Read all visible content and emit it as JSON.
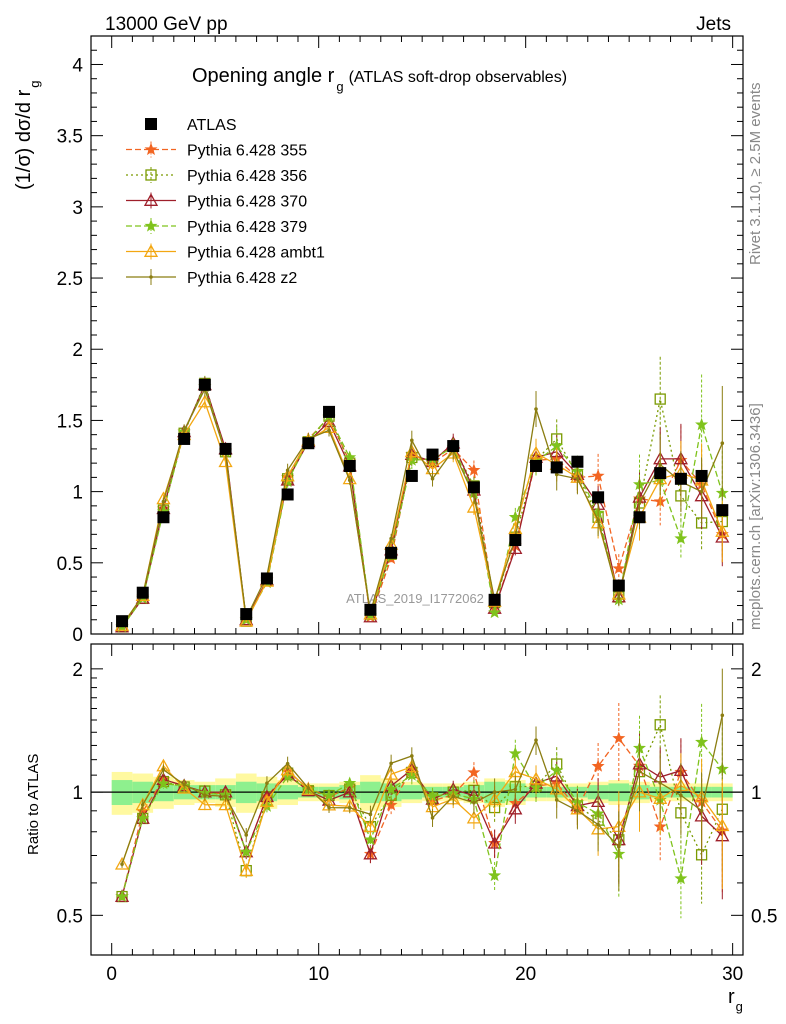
{
  "header": {
    "energy": "13000 GeV pp",
    "category": "Jets"
  },
  "side": {
    "rivet": "Rivet 3.1.10, ≥ 2.5M events",
    "source": "mcplots.cern.ch [arXiv:1306.3436]"
  },
  "chart_data": {
    "type": "line",
    "title_main": "Opening angle r",
    "title_sub": "g",
    "title_extra": "(ATLAS soft-drop observables)",
    "ylabel_main": "(1/σ) dσ/d r",
    "ylabel_sub": "g",
    "ratio_ylabel": "Ratio to ATLAS",
    "xlabel": "r",
    "xlabel_sub": "g",
    "watermark": "ATLAS_2019_I1772062",
    "xlim": [
      -1,
      30.5
    ],
    "ylim": [
      0,
      4.2
    ],
    "ratio_ylim": [
      0.4,
      2.3
    ],
    "x_ticks": [
      "0",
      "10",
      "20",
      "30"
    ],
    "y_ticks": [
      "0",
      "0.5",
      "1",
      "1.5",
      "2",
      "2.5",
      "3",
      "3.5",
      "4"
    ],
    "ratio_ticks": [
      "0.5",
      "1",
      "2"
    ],
    "x": [
      0.5,
      1.5,
      2.5,
      3.5,
      4.5,
      5.5,
      6.5,
      7.5,
      8.5,
      9.5,
      10.5,
      11.5,
      12.5,
      13.5,
      14.5,
      15.5,
      16.5,
      17.5,
      18.5,
      19.5,
      20.5,
      21.5,
      22.5,
      23.5,
      24.5,
      25.5,
      26.5,
      27.5,
      28.5,
      29.5
    ],
    "data": {
      "name": "ATLAS",
      "values": [
        0.09,
        0.29,
        0.82,
        1.37,
        1.75,
        1.3,
        0.14,
        0.39,
        0.98,
        1.34,
        1.56,
        1.18,
        0.17,
        0.57,
        1.11,
        1.26,
        1.32,
        1.03,
        0.24,
        0.66,
        1.18,
        1.17,
        1.21,
        0.96,
        0.34,
        0.82,
        1.13,
        1.09,
        1.11,
        0.87
      ]
    },
    "series": [
      {
        "name": "Pythia 6.428 355",
        "color": "#f26522",
        "marker": "star",
        "dash": "6,3",
        "values": [
          0.05,
          0.26,
          0.88,
          1.42,
          1.74,
          1.29,
          0.1,
          0.38,
          1.1,
          1.37,
          1.52,
          1.21,
          0.12,
          0.53,
          1.26,
          1.2,
          1.3,
          1.15,
          0.18,
          0.62,
          1.22,
          1.23,
          1.1,
          1.11,
          0.46,
          0.95,
          0.93,
          1.22,
          1.05,
          0.7
        ],
        "ratio_err": [
          0.02,
          0.03,
          0.03,
          0.03,
          0.03,
          0.03,
          0.04,
          0.04,
          0.04,
          0.03,
          0.03,
          0.03,
          0.05,
          0.05,
          0.05,
          0.05,
          0.05,
          0.06,
          0.08,
          0.08,
          0.08,
          0.1,
          0.1,
          0.14,
          0.22,
          0.2,
          0.18,
          0.2,
          0.24,
          0.3
        ]
      },
      {
        "name": "Pythia 6.428 356",
        "color": "#7a9a01",
        "marker": "square-open",
        "dash": "2,3",
        "values": [
          0.05,
          0.25,
          0.87,
          1.41,
          1.76,
          1.28,
          0.09,
          0.38,
          1.09,
          1.35,
          1.53,
          1.2,
          0.14,
          0.56,
          1.24,
          1.22,
          1.32,
          1.04,
          0.22,
          0.68,
          1.22,
          1.37,
          1.12,
          0.82,
          0.26,
          0.92,
          1.65,
          0.97,
          0.78,
          0.79
        ],
        "ratio_err": [
          0.02,
          0.03,
          0.03,
          0.03,
          0.03,
          0.03,
          0.04,
          0.04,
          0.04,
          0.03,
          0.03,
          0.03,
          0.05,
          0.05,
          0.05,
          0.05,
          0.05,
          0.06,
          0.08,
          0.08,
          0.08,
          0.1,
          0.1,
          0.14,
          0.22,
          0.2,
          0.18,
          0.2,
          0.24,
          0.3
        ]
      },
      {
        "name": "Pythia 6.428 370",
        "color": "#9e1f2a",
        "marker": "triangle-open",
        "dash": "",
        "values": [
          0.05,
          0.25,
          0.88,
          1.42,
          1.75,
          1.3,
          0.1,
          0.38,
          1.08,
          1.35,
          1.49,
          1.18,
          0.12,
          0.59,
          1.26,
          1.21,
          1.34,
          1.01,
          0.18,
          0.6,
          1.24,
          1.28,
          1.12,
          0.91,
          0.26,
          0.96,
          1.23,
          1.23,
          0.97,
          0.68
        ],
        "ratio_err": [
          0.02,
          0.03,
          0.03,
          0.03,
          0.03,
          0.03,
          0.04,
          0.04,
          0.04,
          0.03,
          0.03,
          0.03,
          0.05,
          0.05,
          0.05,
          0.05,
          0.05,
          0.06,
          0.08,
          0.08,
          0.08,
          0.1,
          0.1,
          0.14,
          0.22,
          0.2,
          0.18,
          0.2,
          0.24,
          0.3
        ]
      },
      {
        "name": "Pythia 6.428 379",
        "color": "#7fc31c",
        "marker": "star",
        "dash": "6,3",
        "values": [
          0.05,
          0.25,
          0.86,
          1.42,
          1.74,
          1.28,
          0.1,
          0.36,
          1.07,
          1.36,
          1.53,
          1.24,
          0.13,
          0.58,
          1.22,
          1.23,
          1.31,
          0.99,
          0.15,
          0.82,
          1.21,
          1.32,
          1.14,
          0.85,
          0.24,
          1.05,
          1.08,
          0.67,
          1.47,
          0.99
        ],
        "ratio_err": [
          0.02,
          0.03,
          0.03,
          0.03,
          0.03,
          0.03,
          0.04,
          0.04,
          0.04,
          0.03,
          0.03,
          0.03,
          0.05,
          0.05,
          0.05,
          0.05,
          0.05,
          0.06,
          0.08,
          0.08,
          0.08,
          0.1,
          0.1,
          0.14,
          0.22,
          0.2,
          0.18,
          0.2,
          0.24,
          0.3
        ]
      },
      {
        "name": "Pythia 6.428 ambt1",
        "color": "#f3a712",
        "marker": "triangle-open",
        "dash": "",
        "values": [
          0.06,
          0.27,
          0.95,
          1.4,
          1.63,
          1.21,
          0.09,
          0.37,
          1.11,
          1.36,
          1.45,
          1.09,
          0.14,
          0.63,
          1.28,
          1.16,
          1.27,
          0.89,
          0.23,
          0.74,
          1.27,
          1.19,
          1.1,
          0.78,
          0.28,
          0.82,
          1.09,
          1.13,
          1.08,
          0.72
        ],
        "ratio_err": [
          0.02,
          0.03,
          0.03,
          0.03,
          0.03,
          0.03,
          0.04,
          0.04,
          0.04,
          0.03,
          0.03,
          0.03,
          0.05,
          0.05,
          0.05,
          0.05,
          0.05,
          0.06,
          0.08,
          0.08,
          0.08,
          0.1,
          0.1,
          0.14,
          0.22,
          0.2,
          0.18,
          0.2,
          0.24,
          0.3
        ]
      },
      {
        "name": "Pythia 6.428 z2",
        "color": "#8b7d11",
        "marker": "dot",
        "dash": "",
        "values": [
          0.06,
          0.27,
          0.93,
          1.43,
          1.72,
          1.27,
          0.11,
          0.41,
          1.15,
          1.37,
          1.43,
          1.08,
          0.15,
          0.67,
          1.36,
          1.09,
          1.29,
          0.97,
          0.24,
          0.67,
          1.58,
          1.12,
          1.09,
          0.8,
          0.25,
          0.92,
          1.19,
          1.07,
          1.0,
          1.34
        ],
        "ratio_err": [
          0.02,
          0.03,
          0.03,
          0.03,
          0.03,
          0.03,
          0.04,
          0.04,
          0.04,
          0.03,
          0.03,
          0.03,
          0.05,
          0.05,
          0.05,
          0.05,
          0.05,
          0.06,
          0.08,
          0.08,
          0.08,
          0.1,
          0.1,
          0.14,
          0.22,
          0.2,
          0.18,
          0.2,
          0.24,
          0.3
        ]
      }
    ],
    "band_inner": [
      0.07,
      0.06,
      0.05,
      0.04,
      0.04,
      0.04,
      0.06,
      0.05,
      0.04,
      0.03,
      0.03,
      0.04,
      0.06,
      0.05,
      0.04,
      0.03,
      0.03,
      0.04,
      0.06,
      0.05,
      0.03,
      0.03,
      0.03,
      0.04,
      0.05,
      0.04,
      0.03,
      0.03,
      0.03,
      0.03
    ],
    "band_outer": [
      0.12,
      0.11,
      0.09,
      0.07,
      0.06,
      0.08,
      0.11,
      0.09,
      0.07,
      0.05,
      0.05,
      0.06,
      0.1,
      0.08,
      0.06,
      0.05,
      0.05,
      0.06,
      0.08,
      0.07,
      0.05,
      0.05,
      0.05,
      0.06,
      0.07,
      0.06,
      0.05,
      0.05,
      0.05,
      0.05
    ],
    "legend_position": "top-left",
    "grid": false
  }
}
